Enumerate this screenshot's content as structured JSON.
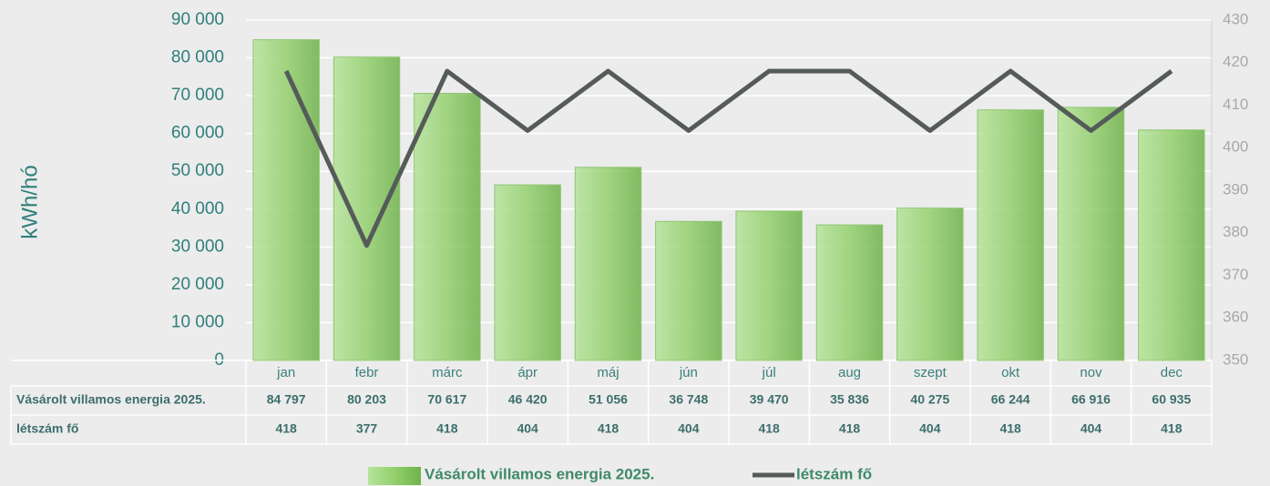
{
  "chart_data": {
    "type": "bar",
    "ylabel": "kWh/hó",
    "categories": [
      "jan",
      "febr",
      "márc",
      "ápr",
      "máj",
      "jún",
      "júl",
      "aug",
      "szept",
      "okt",
      "nov",
      "dec"
    ],
    "series": [
      {
        "name": "Vásárolt villamos energia 2025.",
        "type": "bar",
        "color": "#93d06d",
        "values": [
          84797,
          80203,
          70617,
          46420,
          51056,
          36748,
          39470,
          35836,
          40275,
          66244,
          66916,
          60935
        ],
        "value_labels": [
          "84 797",
          "80 203",
          "70 617",
          "46 420",
          "51 056",
          "36 748",
          "39 470",
          "35 836",
          "40 275",
          "66 244",
          "66 916",
          "60 935"
        ]
      },
      {
        "name": "létszám fő",
        "type": "line",
        "color": "#555b59",
        "axis": "y2",
        "values": [
          418,
          377,
          418,
          404,
          418,
          404,
          418,
          418,
          404,
          418,
          404,
          418
        ]
      }
    ],
    "ylim": [
      0,
      90000
    ],
    "yticks": [
      0,
      {
        "value": 10000,
        "label": "10 000"
      },
      {
        "value": 20000,
        "label": "20 000"
      },
      {
        "value": 30000,
        "label": "30 000"
      },
      {
        "value": 40000,
        "label": "40 000"
      },
      {
        "value": 50000,
        "label": "50 000"
      },
      {
        "value": 60000,
        "label": "60 000"
      },
      {
        "value": 70000,
        "label": "70 000"
      },
      {
        "value": 80000,
        "label": "80 000"
      },
      {
        "value": 90000,
        "label": "90 000"
      }
    ],
    "y2lim": [
      350,
      430
    ],
    "y2ticks": [
      350,
      360,
      370,
      380,
      390,
      400,
      410,
      420,
      430
    ],
    "grid": true,
    "legend": "bottom"
  }
}
